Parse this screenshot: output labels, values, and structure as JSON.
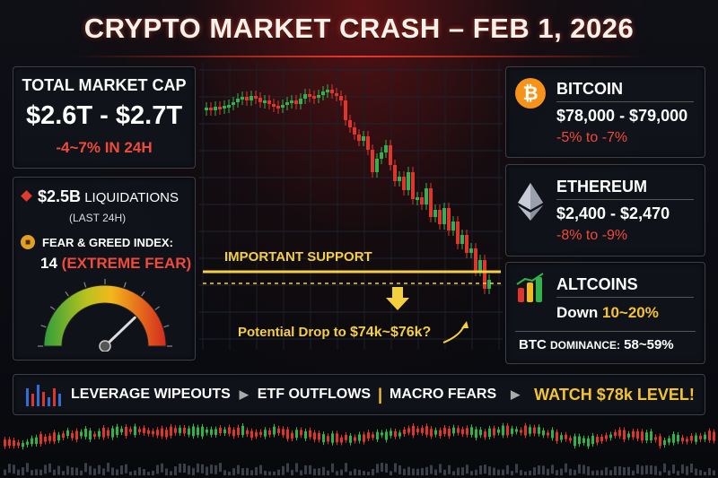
{
  "title": "CRYPTO MARKET CRASH – FEB 1, 2026",
  "market_cap": {
    "label": "TOTAL MARKET CAP",
    "value": "$2.6T - $2.7T",
    "change": "-4~7% IN 24H"
  },
  "liquidations": {
    "amount": "$2.5B",
    "label": "LIQUIDATIONS",
    "period": "(LAST 24H)"
  },
  "fear_greed": {
    "label": "FEAR & GREED INDEX:",
    "value": "14",
    "status": "(EXTREME FEAR)",
    "level": 14
  },
  "bitcoin": {
    "name": "BITCOIN",
    "price": "$78,000 - $79,000",
    "change": "-5% to -7%",
    "icon": "bitcoin-icon",
    "color": "#f7931a"
  },
  "ethereum": {
    "name": "ETHEREUM",
    "price": "$2,400 - $2,470",
    "change": "-8% to -9%",
    "icon": "ethereum-icon"
  },
  "altcoins": {
    "name": "ALTCOINS",
    "down_prefix": "Down",
    "down_range": "10~20%",
    "dominance_prefix": "BTC",
    "dominance_label": "DOMINANCE:",
    "dominance_value": "58~59%"
  },
  "chart": {
    "support_label": "IMPORTANT SUPPORT",
    "drop_prefix": "Potential Drop to",
    "drop_range": "$74k~$76k?"
  },
  "ticker": {
    "item1": "LEVERAGE WIPEOUTS",
    "item2": "ETF OUTFLOWS",
    "item3": "MACRO FEARS",
    "watch": "WATCH $78k LEVEL!"
  },
  "colors": {
    "up": "#2fb34a",
    "down": "#e0352b",
    "accent": "#f4c430",
    "negative": "#f04a3a"
  }
}
